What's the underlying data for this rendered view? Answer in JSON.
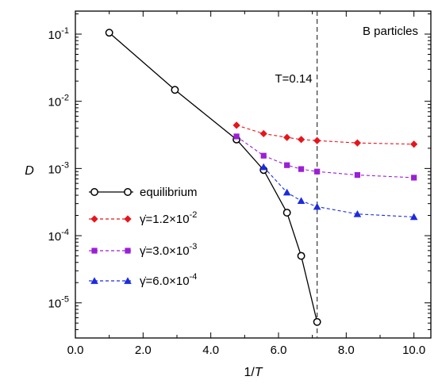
{
  "chart_data": {
    "type": "line",
    "title": "",
    "xlabel": "1/T",
    "ylabel": "D",
    "xlim": [
      0,
      10.5
    ],
    "ylim": [
      3e-06,
      0.22
    ],
    "yscale": "log",
    "grid": false,
    "legend_placement": "lower-left",
    "x_ticks": [
      0,
      2,
      4,
      6,
      8,
      10
    ],
    "x_tick_labels": [
      "0.0",
      "2.0",
      "4.0",
      "6.0",
      "8.0",
      "10.0"
    ],
    "y_ticks": [
      {
        "value": 0.1,
        "mantissa": "10",
        "exponent": "-1"
      },
      {
        "value": 0.01,
        "mantissa": "10",
        "exponent": "-2"
      },
      {
        "value": 0.001,
        "mantissa": "10",
        "exponent": "-3"
      },
      {
        "value": 0.0001,
        "mantissa": "10",
        "exponent": "-4"
      },
      {
        "value": 1e-05,
        "mantissa": "10",
        "exponent": "-5"
      }
    ],
    "annotations": [
      {
        "text": "B particles",
        "placement": "top-right"
      },
      {
        "text": "T=0.14",
        "x": 7.14,
        "position": "near vertical reference line"
      }
    ],
    "reference_lines": [
      {
        "orientation": "vertical",
        "x": 7.14,
        "style": "dashed",
        "color": "#444444"
      }
    ],
    "series": [
      {
        "name": "equilibrium",
        "label_parts": {
          "text": "equilibrium"
        },
        "color": "#000000",
        "line_style": "solid",
        "marker": "open-circle",
        "x": [
          1.0,
          2.94,
          4.76,
          5.56,
          6.25,
          6.67,
          7.14
        ],
        "y": [
          0.105,
          0.0148,
          0.0027,
          0.00095,
          0.00022,
          5e-05,
          5.2e-06
        ]
      },
      {
        "name": "γ̇=1.2×10^-2",
        "label_parts": {
          "prefix": "γ̇=1.2×10",
          "exponent": "-2"
        },
        "color": "#e8141b",
        "line_style": "dashed",
        "marker": "diamond",
        "x": [
          4.76,
          5.56,
          6.25,
          6.67,
          7.14,
          8.33,
          10.0
        ],
        "y": [
          0.0044,
          0.0033,
          0.0029,
          0.0027,
          0.0026,
          0.0024,
          0.0023
        ]
      },
      {
        "name": "γ̇=3.0×10^-3",
        "label_parts": {
          "prefix": "γ̇=3.0×10",
          "exponent": "-3"
        },
        "color": "#9b1fd6",
        "line_style": "dashed",
        "marker": "square",
        "x": [
          4.76,
          5.56,
          6.25,
          6.67,
          7.14,
          8.33,
          10.0
        ],
        "y": [
          0.003,
          0.00155,
          0.00112,
          0.00098,
          0.0009,
          0.0008,
          0.00073
        ]
      },
      {
        "name": "γ̇=6.0×10^-4",
        "label_parts": {
          "prefix": "γ̇=6.0×10",
          "exponent": "-4"
        },
        "color": "#1c2be0",
        "line_style": "dashed",
        "marker": "triangle",
        "x": [
          5.56,
          6.25,
          6.67,
          7.14,
          8.33,
          10.0
        ],
        "y": [
          0.00105,
          0.00044,
          0.00033,
          0.00027,
          0.00021,
          0.00019
        ]
      }
    ]
  }
}
